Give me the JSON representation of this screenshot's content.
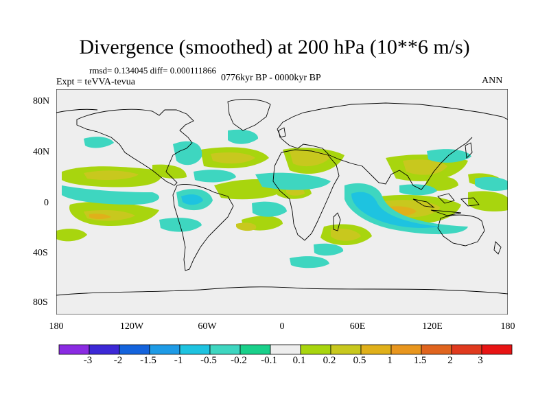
{
  "title": "Divergence (smoothed) at 200 hPa (10**6 m/s)",
  "stats": "rmsd= 0.134045 diff= 0.000111866",
  "experiment": "Expt = teVVA-tevua",
  "period": "0776kyr BP - 0000kyr BP",
  "season": "ANN",
  "axes": {
    "lat_labels": [
      "80N",
      "40N",
      "0",
      "40S",
      "80S"
    ],
    "lon_labels": [
      "180",
      "120W",
      "60W",
      "0",
      "60E",
      "120E",
      "180"
    ]
  },
  "colorbar": {
    "labels": [
      "-3",
      "-2",
      "-1.5",
      "-1",
      "-0.5",
      "-0.2",
      "-0.1",
      "0.1",
      "0.2",
      "0.5",
      "1",
      "1.5",
      "2",
      "3"
    ],
    "colors": [
      "#8a2be2",
      "#3c28d6",
      "#1463dc",
      "#1e9be6",
      "#1ec3e0",
      "#3ed6c0",
      "#19d08a",
      "#eeeeee",
      "#a8d50e",
      "#c8c81e",
      "#e0b01a",
      "#e8961e",
      "#e0641e",
      "#e03a1e",
      "#e81414"
    ]
  },
  "colors": {
    "land_ocean_bg": "#eeeeee",
    "coast": "#000000",
    "pos_low": "#a8d50e",
    "pos_mid": "#c8c81e",
    "pos_high": "#e0b01a",
    "neg_low": "#3ed6c0",
    "neg_mid": "#1ec3e0"
  }
}
